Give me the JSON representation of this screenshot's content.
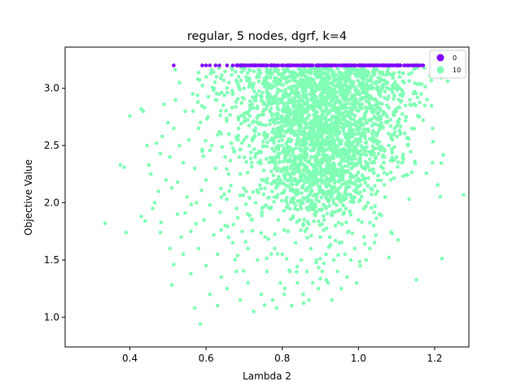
{
  "chart_data": {
    "type": "scatter",
    "title": "regular, 5 nodes, dgrf, k=4",
    "xlabel": "Lambda 2",
    "ylabel": "Objective Value",
    "xlim": [
      0.23,
      1.29
    ],
    "ylim": [
      0.74,
      3.36
    ],
    "xticks": [
      0.4,
      0.6,
      0.8,
      1.0,
      1.2
    ],
    "xtick_labels": [
      "0.4",
      "0.6",
      "0.8",
      "1.0",
      "1.2"
    ],
    "yticks": [
      1.0,
      1.5,
      2.0,
      2.5,
      3.0
    ],
    "ytick_labels": [
      "1.0",
      "1.5",
      "2.0",
      "2.5",
      "3.0"
    ],
    "grid": false,
    "legend_position": "top-right",
    "series": [
      {
        "name": "0",
        "color": "#7f00ff",
        "points": [
          [
            0.515,
            3.2
          ],
          [
            0.59,
            3.2
          ],
          [
            0.6,
            3.2
          ],
          [
            0.61,
            3.2
          ],
          [
            0.625,
            3.2
          ],
          [
            0.635,
            3.2
          ],
          [
            0.655,
            3.2
          ],
          [
            0.67,
            3.2
          ],
          [
            0.68,
            3.2
          ],
          [
            0.69,
            3.2
          ],
          [
            0.7,
            3.2
          ],
          [
            0.71,
            3.2
          ],
          [
            0.72,
            3.2
          ],
          [
            0.73,
            3.2
          ],
          [
            0.74,
            3.2
          ],
          [
            0.75,
            3.2
          ],
          [
            0.76,
            3.2
          ],
          [
            0.77,
            3.2
          ],
          [
            0.78,
            3.2
          ],
          [
            0.79,
            3.2
          ],
          [
            0.8,
            3.2
          ],
          [
            0.81,
            3.2
          ],
          [
            0.82,
            3.2
          ],
          [
            0.83,
            3.2
          ],
          [
            0.84,
            3.2
          ],
          [
            0.85,
            3.2
          ],
          [
            0.86,
            3.2
          ],
          [
            0.87,
            3.2
          ],
          [
            0.88,
            3.2
          ],
          [
            0.89,
            3.2
          ],
          [
            0.9,
            3.2
          ],
          [
            0.91,
            3.2
          ],
          [
            0.92,
            3.2
          ],
          [
            0.93,
            3.2
          ],
          [
            0.94,
            3.2
          ],
          [
            0.95,
            3.2
          ],
          [
            0.96,
            3.2
          ],
          [
            0.97,
            3.2
          ],
          [
            0.98,
            3.2
          ],
          [
            0.99,
            3.2
          ],
          [
            1.0,
            3.2
          ],
          [
            1.01,
            3.2
          ],
          [
            1.02,
            3.2
          ],
          [
            1.03,
            3.2
          ],
          [
            1.04,
            3.2
          ],
          [
            1.05,
            3.2
          ],
          [
            1.06,
            3.2
          ],
          [
            1.07,
            3.2
          ],
          [
            1.08,
            3.2
          ],
          [
            1.09,
            3.2
          ],
          [
            1.1,
            3.2
          ],
          [
            1.11,
            3.2
          ],
          [
            1.12,
            3.2
          ],
          [
            1.13,
            3.2
          ],
          [
            1.14,
            3.2
          ],
          [
            1.15,
            3.2
          ],
          [
            1.16,
            3.2
          ],
          [
            1.17,
            3.2
          ]
        ]
      },
      {
        "name": "10",
        "color": "#80ffb4",
        "points": [
          [
            0.335,
            1.82
          ],
          [
            0.375,
            2.33
          ],
          [
            0.385,
            2.31
          ],
          [
            0.39,
            1.74
          ],
          [
            0.4,
            2.76
          ],
          [
            0.43,
            2.82
          ],
          [
            0.435,
            2.8
          ],
          [
            0.43,
            1.88
          ],
          [
            0.44,
            1.84
          ],
          [
            0.445,
            2.5
          ],
          [
            0.45,
            2.33
          ],
          [
            0.455,
            2.25
          ],
          [
            0.46,
            1.95
          ],
          [
            0.465,
            2.0
          ],
          [
            0.47,
            2.52
          ],
          [
            0.475,
            2.1
          ],
          [
            0.48,
            2.43
          ],
          [
            0.48,
            1.74
          ],
          [
            0.485,
            2.58
          ],
          [
            0.49,
            2.86
          ],
          [
            0.495,
            2.2
          ],
          [
            0.5,
            2.7
          ],
          [
            0.505,
            2.4
          ],
          [
            0.505,
            1.6
          ],
          [
            0.51,
            2.13
          ],
          [
            0.51,
            1.28
          ],
          [
            0.515,
            2.65
          ],
          [
            0.515,
            1.46
          ],
          [
            0.52,
            2.9
          ],
          [
            0.525,
            2.18
          ],
          [
            0.525,
            1.9
          ],
          [
            0.53,
            3.05
          ],
          [
            0.53,
            2.5
          ],
          [
            0.535,
            1.7
          ],
          [
            0.54,
            2.35
          ],
          [
            0.54,
            1.55
          ],
          [
            0.545,
            2.8
          ],
          [
            0.55,
            2.05
          ],
          [
            0.555,
            2.55
          ],
          [
            0.56,
            1.75
          ],
          [
            0.56,
            1.38
          ],
          [
            0.565,
            2.95
          ],
          [
            0.57,
            2.3
          ],
          [
            0.57,
            1.08
          ],
          [
            0.575,
            2.0
          ],
          [
            0.58,
            2.65
          ],
          [
            0.58,
            1.6
          ],
          [
            0.585,
            0.94
          ],
          [
            0.59,
            2.45
          ],
          [
            0.595,
            1.85
          ],
          [
            0.6,
            3.1
          ],
          [
            0.6,
            2.2
          ],
          [
            0.6,
            1.45
          ],
          [
            0.605,
            2.75
          ],
          [
            0.61,
            1.98
          ],
          [
            0.61,
            1.2
          ],
          [
            0.615,
            2.5
          ],
          [
            0.62,
            1.72
          ],
          [
            0.625,
            2.9
          ],
          [
            0.625,
            2.3
          ],
          [
            0.63,
            1.55
          ],
          [
            0.63,
            1.1
          ],
          [
            0.635,
            2.62
          ],
          [
            0.64,
            2.05
          ],
          [
            0.64,
            1.35
          ],
          [
            0.645,
            2.85
          ],
          [
            0.65,
            2.4
          ],
          [
            0.65,
            1.8
          ],
          [
            0.655,
            1.25
          ],
          [
            0.66,
            3.05
          ],
          [
            0.66,
            2.6
          ],
          [
            0.665,
            2.15
          ],
          [
            0.67,
            1.65
          ],
          [
            0.67,
            2.95
          ],
          [
            0.675,
            2.45
          ],
          [
            0.68,
            1.95
          ],
          [
            0.68,
            1.4
          ],
          [
            0.685,
            2.75
          ],
          [
            0.69,
            2.25
          ],
          [
            0.69,
            1.15
          ],
          [
            0.695,
            1.75
          ],
          [
            0.7,
            3.0
          ],
          [
            0.7,
            2.55
          ],
          [
            0.705,
            2.1
          ],
          [
            0.71,
            1.6
          ],
          [
            0.71,
            1.3
          ],
          [
            0.715,
            2.85
          ],
          [
            0.72,
            2.35
          ],
          [
            0.72,
            1.85
          ],
          [
            0.725,
            1.05
          ],
          [
            0.73,
            2.65
          ],
          [
            0.73,
            2.0
          ],
          [
            0.735,
            1.5
          ],
          [
            0.74,
            3.1
          ],
          [
            0.74,
            2.45
          ],
          [
            0.745,
            1.2
          ],
          [
            0.75,
            2.8
          ],
          [
            0.75,
            2.2
          ],
          [
            0.755,
            1.7
          ],
          [
            0.76,
            1.4
          ],
          [
            0.765,
            2.95
          ],
          [
            0.77,
            2.55
          ],
          [
            0.77,
            1.95
          ],
          [
            0.775,
            1.15
          ],
          [
            0.78,
            2.3
          ],
          [
            0.78,
            1.6
          ],
          [
            0.785,
            1.08
          ],
          [
            0.79,
            2.7
          ],
          [
            0.79,
            1.85
          ],
          [
            0.795,
            1.3
          ],
          [
            0.8,
            2.5
          ],
          [
            0.8,
            1.55
          ],
          [
            0.805,
            1.2
          ],
          [
            0.81,
            2.15
          ],
          [
            0.815,
            1.75
          ],
          [
            0.82,
            1.4
          ],
          [
            0.825,
            1.1
          ],
          [
            0.83,
            2.0
          ],
          [
            0.835,
            1.65
          ],
          [
            0.84,
            1.3
          ],
          [
            0.845,
            1.85
          ],
          [
            0.85,
            1.5
          ],
          [
            0.855,
            1.2
          ],
          [
            0.86,
            1.75
          ],
          [
            0.865,
            1.4
          ],
          [
            0.87,
            1.15
          ],
          [
            0.875,
            1.6
          ],
          [
            0.88,
            1.3
          ],
          [
            0.885,
            1.9
          ],
          [
            0.89,
            1.5
          ],
          [
            0.895,
            1.25
          ],
          [
            0.9,
            1.7
          ],
          [
            0.905,
            1.4
          ],
          [
            0.91,
            1.85
          ],
          [
            0.915,
            1.55
          ],
          [
            0.92,
            1.3
          ],
          [
            0.925,
            1.7
          ],
          [
            0.93,
            1.15
          ],
          [
            0.935,
            1.5
          ],
          [
            0.94,
            1.8
          ],
          [
            0.945,
            1.4
          ],
          [
            0.95,
            1.65
          ],
          [
            0.955,
            1.25
          ],
          [
            0.96,
            1.9
          ],
          [
            0.965,
            1.55
          ],
          [
            0.97,
            1.35
          ],
          [
            0.975,
            1.75
          ],
          [
            0.98,
            1.5
          ],
          [
            0.985,
            2.05
          ],
          [
            0.99,
            1.6
          ],
          [
            0.995,
            1.3
          ],
          [
            1.0,
            1.85
          ],
          [
            1.005,
            1.45
          ],
          [
            1.01,
            2.2
          ],
          [
            1.015,
            1.7
          ],
          [
            1.02,
            1.5
          ],
          [
            1.025,
            2.0
          ],
          [
            1.03,
            1.6
          ],
          [
            1.035,
            2.35
          ],
          [
            1.04,
            1.8
          ],
          [
            1.045,
            2.55
          ],
          [
            1.05,
            2.1
          ],
          [
            1.055,
            1.9
          ],
          [
            1.06,
            2.7
          ],
          [
            1.065,
            2.3
          ],
          [
            1.07,
            2.05
          ],
          [
            1.075,
            2.85
          ],
          [
            1.08,
            2.5
          ],
          [
            1.085,
            2.2
          ],
          [
            1.09,
            3.0
          ],
          [
            1.095,
            2.65
          ],
          [
            1.1,
            2.4
          ],
          [
            1.105,
            2.9
          ],
          [
            1.11,
            2.6
          ],
          [
            1.115,
            2.35
          ],
          [
            1.12,
            3.05
          ],
          [
            1.125,
            2.75
          ],
          [
            1.13,
            2.5
          ],
          [
            1.135,
            2.9
          ],
          [
            1.14,
            2.65
          ],
          [
            1.15,
            2.85
          ],
          [
            1.16,
            2.75
          ],
          [
            1.165,
            2.95
          ],
          [
            1.17,
            2.72
          ],
          [
            1.195,
            2.65
          ]
        ],
        "dense_region": {
          "x_center": 0.9,
          "y_center": 2.7,
          "x_spread": 0.085,
          "y_top": 3.18,
          "y_bottom": 1.9,
          "count": 1800
        }
      }
    ]
  }
}
